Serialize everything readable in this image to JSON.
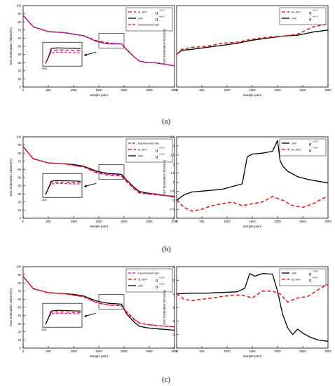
{
  "colors": {
    "slukf": "#e02020",
    "ukf": "#000000",
    "experimental": "#cc22cc",
    "box": "#000000"
  },
  "captions": [
    "(a)",
    "(b)",
    "(c)"
  ],
  "chart_data": [
    {
      "type": "line",
      "row": 0,
      "ylabel": "SoC Estimation Values(%)",
      "xlabel": "sample point",
      "xlim": [
        0,
        3000
      ],
      "ylim": [
        0,
        100
      ],
      "xticks": [
        "0",
        "500",
        "1000",
        "1500",
        "2000",
        "2500",
        "3000"
      ],
      "yticks": [
        "0",
        "10",
        "20",
        "30",
        "40",
        "50",
        "60",
        "70",
        "80",
        "90",
        "100"
      ],
      "inset_label": "1500",
      "legend_position": "top-right",
      "series": [
        {
          "name": "SL-UKF",
          "alpha": "α",
          "alpha_sup": "=1e-3",
          "style": "dash-red",
          "x": [
            0,
            200,
            500,
            800,
            1000,
            1200,
            1450,
            1600,
            1700,
            1950,
            2050,
            2200,
            2300,
            2450,
            2600,
            2800,
            3000
          ],
          "values": [
            88,
            74,
            68,
            67,
            65,
            63,
            57,
            55,
            54,
            53,
            46,
            37,
            32,
            30,
            30,
            28,
            26
          ]
        },
        {
          "name": "UKF",
          "alpha": "α",
          "alpha_sup": "=1e-3",
          "style": "solid-black",
          "x": [
            0,
            200,
            500,
            800,
            1000,
            1200,
            1450,
            1600,
            1700,
            1950,
            2050,
            2200,
            2300,
            2450,
            2600,
            2800,
            3000
          ],
          "values": [
            88,
            74,
            68,
            67,
            65,
            63,
            56,
            54,
            53,
            53,
            46,
            37,
            32,
            30,
            30,
            28,
            26
          ]
        },
        {
          "name": "Experimental Data",
          "style": "dash-magenta",
          "x": [
            0,
            200,
            500,
            800,
            1000,
            1200,
            1450,
            1600,
            1700,
            1950,
            2050,
            2200,
            2300,
            2450,
            2600,
            2800,
            3000
          ],
          "values": [
            88,
            74,
            68,
            67,
            65,
            63,
            56,
            54,
            53,
            53,
            46,
            37,
            32,
            30,
            30,
            28,
            26
          ]
        }
      ]
    },
    {
      "type": "line",
      "row": 0,
      "ylabel": "SoC Estimation Error(%)",
      "xlabel": "sample point",
      "xlim": [
        0,
        3000
      ],
      "ylim": [
        0,
        4
      ],
      "xticks": [
        "0",
        "500",
        "1000",
        "1500",
        "2000",
        "2500",
        "3000"
      ],
      "yticks": [],
      "legend_position": "top-right",
      "series": [
        {
          "name": "SL-UKF",
          "alpha": "α",
          "alpha_sup": "=1e-3",
          "style": "dash-red",
          "x": [
            0,
            100,
            300,
            600,
            900,
            1200,
            1500,
            1800,
            2100,
            2400,
            2700,
            3000
          ],
          "values": [
            1.6,
            1.85,
            1.95,
            2.0,
            2.15,
            2.2,
            2.35,
            2.45,
            2.5,
            2.6,
            2.95,
            3.1
          ]
        },
        {
          "name": "UKF",
          "alpha": "α",
          "alpha_sup": "=1e-3",
          "style": "solid-black",
          "x": [
            0,
            100,
            300,
            600,
            900,
            1200,
            1500,
            1800,
            2100,
            2400,
            2700,
            3000
          ],
          "values": [
            1.6,
            1.8,
            1.85,
            1.95,
            2.05,
            2.15,
            2.3,
            2.4,
            2.5,
            2.55,
            2.7,
            2.8
          ]
        }
      ]
    },
    {
      "type": "line",
      "row": 1,
      "ylabel": "SoC Estimation Values(%)",
      "xlabel": "sample point",
      "xlim": [
        0,
        3000
      ],
      "ylim": [
        0,
        100
      ],
      "xticks": [
        "0",
        "500",
        "1000",
        "1500",
        "2000",
        "2500",
        "3000"
      ],
      "yticks": [
        "0",
        "10",
        "20",
        "30",
        "40",
        "50",
        "60",
        "70",
        "80",
        "90",
        "100"
      ],
      "inset_label": "1500",
      "legend_position": "top-right",
      "series": [
        {
          "name": "Experimental Data",
          "style": "dash-magenta",
          "x": [
            0,
            200,
            500,
            800,
            1000,
            1200,
            1450,
            1600,
            1700,
            1950,
            2050,
            2200,
            2300,
            2450,
            2600,
            2800,
            3000
          ],
          "values": [
            88,
            73,
            68,
            67,
            65,
            63,
            57,
            55,
            54,
            53,
            46,
            37,
            32,
            30,
            30,
            28,
            26
          ]
        },
        {
          "name": "SL-UKF",
          "alpha": "α",
          "alpha_sup": "=0.45",
          "style": "dash-red",
          "x": [
            0,
            200,
            500,
            800,
            1000,
            1200,
            1450,
            1600,
            1700,
            1950,
            2050,
            2200,
            2300,
            2450,
            2600,
            2800,
            3000
          ],
          "values": [
            88,
            73,
            68,
            67,
            65,
            63,
            56,
            54,
            53,
            52,
            45,
            36,
            31,
            30,
            29,
            28,
            26
          ]
        },
        {
          "name": "UKF",
          "alpha": "α",
          "alpha_sup": "=0.45",
          "style": "solid-black",
          "x": [
            0,
            200,
            500,
            800,
            1000,
            1200,
            1450,
            1600,
            1700,
            1950,
            2050,
            2200,
            2300,
            2450,
            2600,
            2800,
            3000
          ],
          "values": [
            88,
            73,
            68,
            67,
            66,
            64,
            58,
            56,
            55,
            54,
            47,
            38,
            33,
            31,
            30,
            28,
            27
          ]
        }
      ]
    },
    {
      "type": "line",
      "row": 1,
      "ylabel": "SoC Estimation Error(%)",
      "xlabel": "sample point",
      "xlim": [
        0,
        3000
      ],
      "ylim": [
        -1,
        3.5
      ],
      "xticks": [
        "0",
        "500",
        "1000",
        "1500",
        "2000",
        "2500",
        "3000"
      ],
      "yticks": [
        "-1",
        "-0.5",
        "0",
        "0.5",
        "1",
        "1.5",
        "2",
        "2.5",
        "3",
        "3.5"
      ],
      "legend_position": "top-right",
      "series": [
        {
          "name": "UKF",
          "alpha": "α",
          "alpha_sup": "=0.45",
          "style": "solid-black",
          "x": [
            0,
            150,
            300,
            500,
            700,
            900,
            1100,
            1300,
            1400,
            1500,
            1700,
            1900,
            2000,
            2050,
            2100,
            2200,
            2400,
            2600,
            2800,
            3000
          ],
          "values": [
            0,
            0.3,
            0.45,
            0.5,
            0.55,
            0.6,
            0.75,
            0.9,
            2.4,
            2.55,
            2.6,
            2.7,
            3.3,
            2.2,
            1.9,
            1.6,
            1.3,
            1.15,
            1.05,
            0.95
          ]
        },
        {
          "name": "SL-UKF",
          "alpha": "α",
          "alpha_sup": "=0.45",
          "style": "dash-red",
          "x": [
            0,
            150,
            300,
            500,
            700,
            900,
            1100,
            1300,
            1500,
            1700,
            1900,
            2100,
            2300,
            2500,
            2700,
            2900,
            3000
          ],
          "values": [
            0,
            -0.4,
            -0.6,
            -0.5,
            -0.3,
            -0.2,
            -0.1,
            -0.3,
            -0.2,
            -0.1,
            0.2,
            0.0,
            -0.3,
            -0.4,
            -0.2,
            0.1,
            0.2
          ]
        }
      ]
    },
    {
      "type": "line",
      "row": 2,
      "ylabel": "SoC Estimation Values(%)",
      "xlabel": "sample point",
      "xlim": [
        0,
        3000
      ],
      "ylim": [
        0,
        100
      ],
      "xticks": [
        "0",
        "500",
        "1000",
        "1500",
        "2000",
        "2500",
        "3000"
      ],
      "yticks": [
        "0",
        "10",
        "20",
        "30",
        "40",
        "50",
        "60",
        "70",
        "80",
        "90",
        "100"
      ],
      "inset_label": "1500",
      "legend_position": "top-right",
      "series": [
        {
          "name": "Experimental Data",
          "style": "dash-magenta",
          "x": [
            0,
            200,
            500,
            800,
            1000,
            1200,
            1450,
            1600,
            1700,
            1950,
            2050,
            2200,
            2300,
            2450,
            2600,
            2800,
            3000
          ],
          "values": [
            88,
            73,
            68,
            67,
            65,
            63,
            56,
            54,
            53,
            52,
            45,
            36,
            31,
            29,
            28,
            27,
            26
          ]
        },
        {
          "name": "SL-UKF",
          "alpha": "α",
          "alpha_sup": "=0.90",
          "style": "dash-red",
          "x": [
            0,
            200,
            500,
            800,
            1000,
            1200,
            1450,
            1600,
            1700,
            1950,
            2050,
            2200,
            2300,
            2450,
            2600,
            2800,
            3000
          ],
          "values": [
            88,
            73,
            68,
            67,
            65,
            63,
            56,
            54,
            53,
            52,
            44,
            35,
            31,
            29,
            28,
            27,
            26
          ]
        },
        {
          "name": "UKF",
          "alpha": "α",
          "alpha_sup": "=0.90",
          "style": "solid-black",
          "x": [
            0,
            200,
            500,
            800,
            1000,
            1200,
            1450,
            1600,
            1700,
            1950,
            2050,
            2200,
            2300,
            2450,
            2600,
            2800,
            3000
          ],
          "values": [
            88,
            73,
            68,
            67,
            66,
            64,
            58,
            56,
            55,
            54,
            42,
            32,
            27,
            25,
            24,
            23,
            22
          ]
        }
      ]
    },
    {
      "type": "line",
      "row": 2,
      "ylabel": "SoC Estimation Error(%)",
      "xlabel": "sample point",
      "xlim": [
        0,
        3000
      ],
      "ylim": [
        -4,
        2
      ],
      "xticks": [
        "0",
        "500",
        "1000",
        "1500",
        "2000",
        "2500",
        "3000"
      ],
      "yticks": [
        "-4",
        "-3",
        "-2",
        "-1",
        "0",
        "1",
        "2"
      ],
      "legend_position": "top-right",
      "series": [
        {
          "name": "UKF",
          "alpha": "α",
          "alpha_sup": "=0.90",
          "style": "solid-black",
          "x": [
            0,
            300,
            600,
            900,
            1200,
            1350,
            1450,
            1550,
            1700,
            1900,
            2000,
            2100,
            2200,
            2300,
            2400,
            2500,
            2650,
            2800,
            3000
          ],
          "values": [
            0,
            0.05,
            0.05,
            0.1,
            0.15,
            0.4,
            1.5,
            1.3,
            1.5,
            1.45,
            0.2,
            -1.5,
            -2.5,
            -3.0,
            -2.6,
            -2.9,
            -3.2,
            -3.4,
            -3.5
          ]
        },
        {
          "name": "SL-UKF",
          "alpha": "α",
          "alpha_sup": "=0.90",
          "style": "dash-red",
          "x": [
            0,
            150,
            300,
            500,
            700,
            900,
            1100,
            1300,
            1500,
            1700,
            1900,
            2050,
            2200,
            2400,
            2600,
            2800,
            3000
          ],
          "values": [
            0,
            -0.4,
            -0.5,
            -0.4,
            -0.3,
            -0.2,
            -0.1,
            -0.1,
            -0.3,
            0.2,
            0.2,
            0.0,
            -0.6,
            -0.3,
            -0.2,
            0.3,
            0.7
          ]
        }
      ]
    }
  ]
}
